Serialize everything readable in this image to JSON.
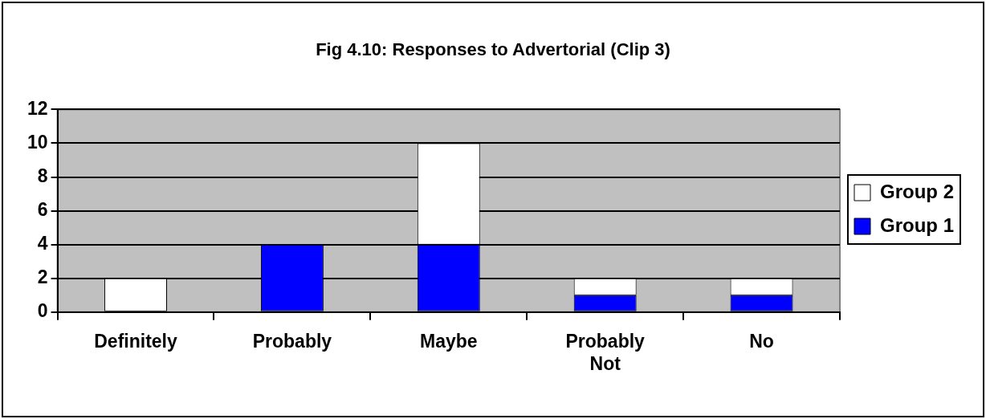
{
  "chart_data": {
    "type": "bar",
    "title": "Fig 4.10: Responses to Advertorial (Clip 3)",
    "categories": [
      "Definitely",
      "Probably",
      "Maybe",
      "Probably Not",
      "No"
    ],
    "series": [
      {
        "name": "Group 1",
        "color": "#0000ff",
        "values": [
          0,
          4,
          4,
          1,
          1
        ]
      },
      {
        "name": "Group 2",
        "color": "#ffffff",
        "values": [
          2,
          0,
          6,
          1,
          1
        ]
      }
    ],
    "stacked": true,
    "ylim": [
      0,
      12
    ],
    "yticks": [
      0,
      2,
      4,
      6,
      8,
      10,
      12
    ],
    "grid": "y",
    "legend": "right"
  }
}
